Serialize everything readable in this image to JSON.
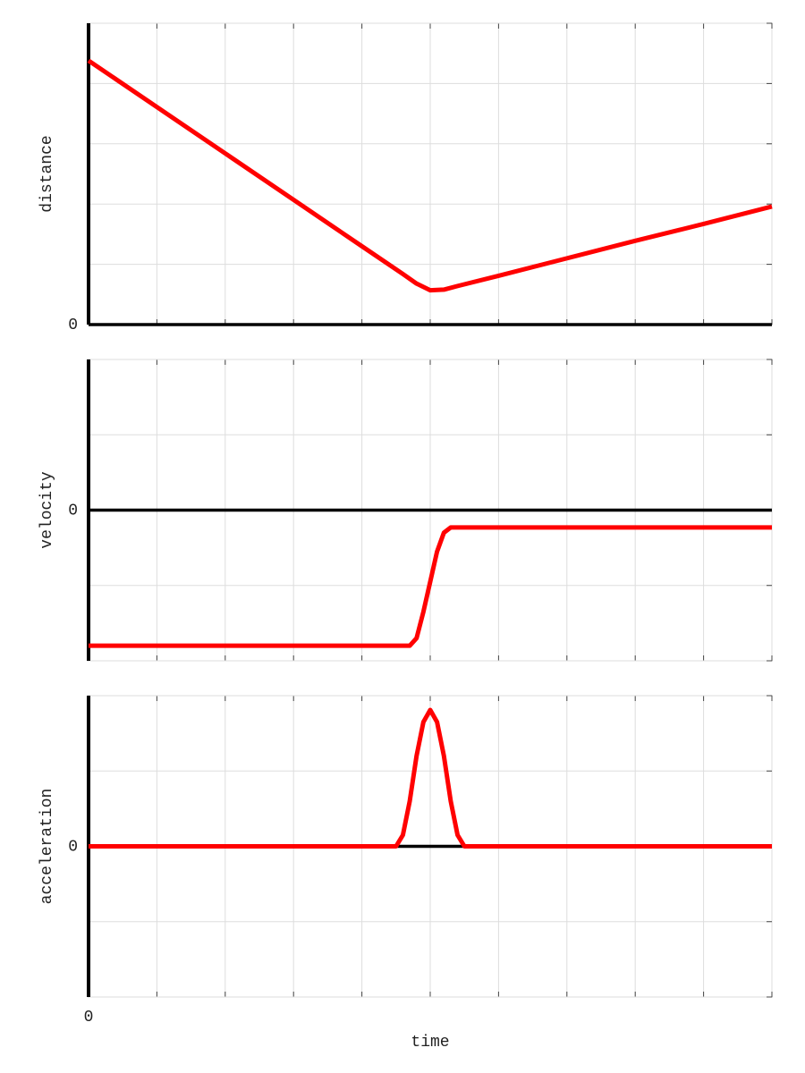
{
  "chart_data": [
    {
      "type": "line",
      "ylabel": "distance",
      "xlim": [
        0,
        10
      ],
      "ylim": [
        0,
        5
      ],
      "grid": true,
      "xticks": [
        {
          "value": 0,
          "label": null
        },
        {
          "value": 1,
          "label": null
        },
        {
          "value": 2,
          "label": null
        },
        {
          "value": 3,
          "label": null
        },
        {
          "value": 4,
          "label": null
        },
        {
          "value": 5,
          "label": null
        },
        {
          "value": 6,
          "label": null
        },
        {
          "value": 7,
          "label": null
        },
        {
          "value": 8,
          "label": null
        },
        {
          "value": 9,
          "label": null
        },
        {
          "value": 10,
          "label": null
        }
      ],
      "yticks": [
        0,
        {
          "value": 1,
          "label": null
        },
        {
          "value": 2,
          "label": null
        },
        {
          "value": 3,
          "label": null
        },
        {
          "value": 4,
          "label": null
        },
        {
          "value": 5,
          "label": null
        }
      ],
      "x": [
        0,
        1,
        2,
        3,
        4,
        4.6,
        4.8,
        5,
        5.2,
        5.4,
        6,
        7,
        8,
        9,
        10
      ],
      "series": [
        {
          "color": "#ff0000",
          "values": [
            4.38,
            3.61,
            2.84,
            2.07,
            1.3,
            0.84,
            0.68,
            0.57,
            0.58,
            0.64,
            0.81,
            1.1,
            1.39,
            1.67,
            1.96
          ]
        }
      ]
    },
    {
      "type": "line",
      "ylabel": "velocity",
      "xlim": [
        0,
        10
      ],
      "ylim": [
        -2,
        2
      ],
      "grid": true,
      "xticks": [
        {
          "value": 0,
          "label": null
        },
        {
          "value": 1,
          "label": null
        },
        {
          "value": 2,
          "label": null
        },
        {
          "value": 3,
          "label": null
        },
        {
          "value": 4,
          "label": null
        },
        {
          "value": 5,
          "label": null
        },
        {
          "value": 6,
          "label": null
        },
        {
          "value": 7,
          "label": null
        },
        {
          "value": 8,
          "label": null
        },
        {
          "value": 9,
          "label": null
        },
        {
          "value": 10,
          "label": null
        }
      ],
      "yticks": [
        {
          "value": -2,
          "label": null
        },
        {
          "value": -1,
          "label": null
        },
        0,
        {
          "value": 1,
          "label": null
        },
        {
          "value": 2,
          "label": null
        }
      ],
      "x": [
        0,
        4.7,
        4.8,
        4.9,
        5.0,
        5.1,
        5.2,
        5.3,
        10
      ],
      "series": [
        {
          "color": "#ff0000",
          "values": [
            -1.8,
            -1.8,
            -1.7,
            -1.35,
            -0.95,
            -0.55,
            -0.3,
            -0.23,
            -0.23
          ]
        }
      ]
    },
    {
      "type": "line",
      "ylabel": "acceleration",
      "xlabel": "time",
      "xlim": [
        0,
        10
      ],
      "ylim": [
        -2,
        2
      ],
      "grid": true,
      "xticks": [
        0,
        {
          "value": 1,
          "label": null
        },
        {
          "value": 2,
          "label": null
        },
        {
          "value": 3,
          "label": null
        },
        {
          "value": 4,
          "label": null
        },
        {
          "value": 5,
          "label": null
        },
        {
          "value": 6,
          "label": null
        },
        {
          "value": 7,
          "label": null
        },
        {
          "value": 8,
          "label": null
        },
        {
          "value": 9,
          "label": null
        },
        {
          "value": 10,
          "label": null
        }
      ],
      "yticks": [
        {
          "value": -2,
          "label": null
        },
        {
          "value": -1,
          "label": null
        },
        0,
        {
          "value": 1,
          "label": null
        },
        {
          "value": 2,
          "label": null
        }
      ],
      "x": [
        0,
        4.5,
        4.6,
        4.7,
        4.8,
        4.9,
        5.0,
        5.1,
        5.2,
        5.3,
        5.4,
        5.5,
        10
      ],
      "series": [
        {
          "color": "#ff0000",
          "values": [
            0,
            0,
            0.15,
            0.6,
            1.2,
            1.65,
            1.81,
            1.65,
            1.2,
            0.6,
            0.15,
            0,
            0
          ]
        }
      ]
    }
  ]
}
